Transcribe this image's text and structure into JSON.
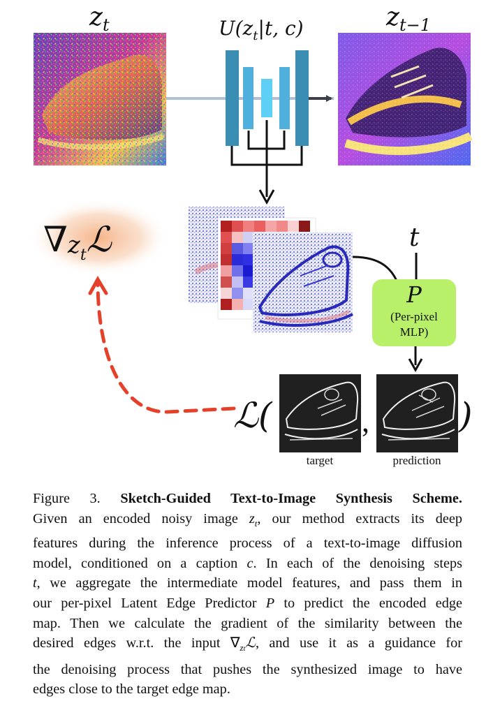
{
  "figure": {
    "z_t_label": "z",
    "z_t_sub": "t",
    "z_prev_label": "z",
    "z_prev_sub": "t−1",
    "unet_label": "U(z",
    "unet_label_sub": "t",
    "unet_label_rest": "|t, c)",
    "grad_nabla": "∇",
    "grad_z": "z",
    "grad_sub": "t",
    "grad_L": "ℒ",
    "t_label": "t",
    "mlp_title": "P",
    "mlp_line1": "(Per-pixel",
    "mlp_line2": "MLP)",
    "loss_symbol": "ℒ(",
    "loss_close": ")",
    "loss_comma": ",",
    "target_label": "target",
    "prediction_label": "prediction",
    "colors": {
      "unet_dark": "#3a8db3",
      "unet_mid": "#4fb0dd",
      "unet_light": "#5fd0f5",
      "arrow": "#3a3f4a",
      "guidance": "#e5402a",
      "mlp_fill": "#b8f06a",
      "glow": "#f2b48a"
    }
  },
  "caption": {
    "lines": [
      [
        "Figure 3.  ",
        "Sketch-Guided Text-to-Image Synthesis Scheme."
      ],
      [
        "Given an encoded noisy image ",
        "z",
        "t",
        ", our method extracts its deep"
      ],
      [
        "features during the inference process of a text-to-image diffusion"
      ],
      [
        "model, conditioned on a caption ",
        "c",
        ". In each of the denoising steps"
      ],
      [
        "t",
        ", we aggregate the intermediate model features, and pass them in"
      ],
      [
        "our per-pixel Latent Edge Predictor ",
        "P",
        " to predict the encoded edge"
      ],
      [
        "map. Then we calculate the gradient of the similarity between the"
      ],
      [
        "desired edges w.r.t. the input ",
        "∇",
        "z",
        "t",
        "ℒ",
        ", and use it as a guidance for"
      ],
      [
        "the denoising process that pushes the synthesized image to have"
      ],
      [
        "edges close to the target edge map."
      ]
    ]
  }
}
